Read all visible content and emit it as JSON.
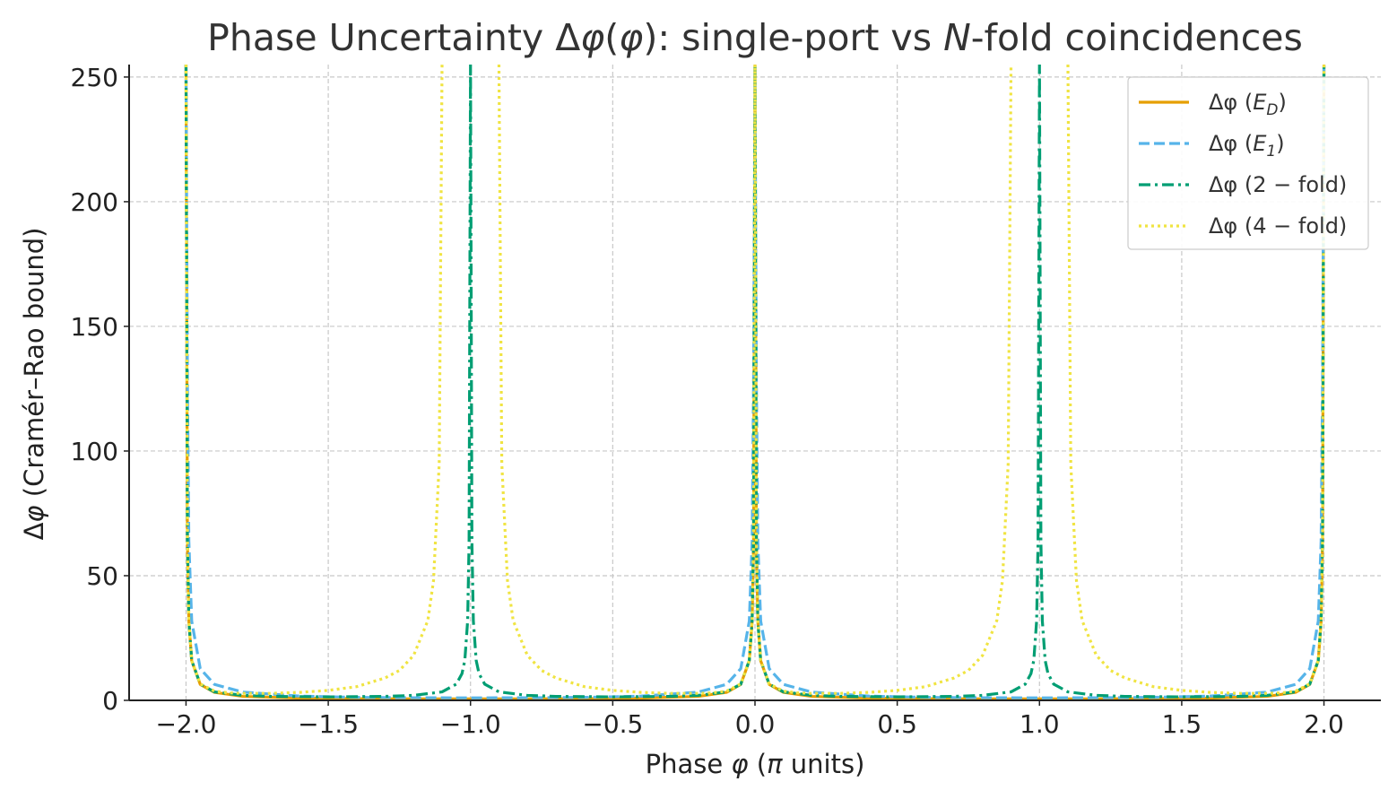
{
  "chart_data": {
    "type": "line",
    "title": "Phase Uncertainty Δφ(φ): single-port vs N-fold coincidences",
    "xlabel": "Phase φ (π units)",
    "ylabel": "Δφ (Cramér–Rao bound)",
    "xlim": [
      -2.2,
      2.2
    ],
    "ylim": [
      0,
      255
    ],
    "x_ticks": [
      -2.0,
      -1.5,
      -1.0,
      -0.5,
      0.0,
      0.5,
      1.0,
      1.5,
      2.0
    ],
    "x_tick_labels": [
      "−2.0",
      "−1.5",
      "−1.0",
      "−0.5",
      "0.0",
      "0.5",
      "1.0",
      "1.5",
      "2.0"
    ],
    "y_ticks": [
      0,
      50,
      100,
      150,
      200,
      250
    ],
    "y_tick_labels": [
      "0",
      "50",
      "100",
      "150",
      "200",
      "250"
    ],
    "grid": true,
    "legend_position": "top-right",
    "colors": {
      "ED": "#E69F00",
      "E1": "#56B4E9",
      "twofold": "#009E73",
      "fourfold": "#F0E442"
    },
    "series": [
      {
        "key": "ED",
        "name": "Δφ (E_D)",
        "style": "solid",
        "x": [
          -2.0,
          -1.995,
          -1.99,
          -1.98,
          -1.95,
          -1.9,
          -1.8,
          -1.6,
          -1.4,
          -1.2,
          -1.0,
          -0.8,
          -0.6,
          -0.4,
          -0.2,
          -0.1,
          -0.05,
          -0.02,
          -0.01,
          -0.005,
          0.0,
          0.005,
          0.01,
          0.02,
          0.05,
          0.1,
          0.2,
          0.4,
          0.6,
          0.8,
          1.0,
          1.2,
          1.4,
          1.6,
          1.8,
          1.9,
          1.95,
          1.98,
          1.99,
          1.995,
          2.0
        ],
        "y": [
          255,
          63.7,
          31.8,
          15.9,
          6.4,
          3.2,
          1.6,
          0.9,
          0.7,
          0.6,
          0.6,
          0.6,
          0.7,
          0.9,
          1.6,
          3.2,
          6.4,
          15.9,
          31.8,
          63.7,
          255,
          63.7,
          31.8,
          15.9,
          6.4,
          3.2,
          1.6,
          0.9,
          0.7,
          0.6,
          0.6,
          0.6,
          0.7,
          0.9,
          1.6,
          3.2,
          6.4,
          15.9,
          31.8,
          63.7,
          255
        ]
      },
      {
        "key": "E1",
        "name": "Δφ (E_1)",
        "style": "dashed",
        "x": [
          -2.0,
          -1.995,
          -1.99,
          -1.98,
          -1.95,
          -1.9,
          -1.8,
          -1.6,
          -1.4,
          -1.2,
          -1.0,
          -0.8,
          -0.6,
          -0.4,
          -0.2,
          -0.1,
          -0.05,
          -0.02,
          -0.01,
          -0.005,
          0.0,
          0.005,
          0.01,
          0.02,
          0.05,
          0.1,
          0.2,
          0.4,
          0.6,
          0.8,
          1.0,
          1.2,
          1.4,
          1.6,
          1.8,
          1.9,
          1.95,
          1.98,
          1.99,
          1.995,
          2.0
        ],
        "y": [
          255,
          127,
          63.7,
          31.8,
          12.7,
          6.4,
          3.3,
          1.7,
          1.2,
          1.05,
          1.0,
          1.05,
          1.2,
          1.7,
          3.3,
          6.4,
          12.7,
          31.8,
          63.7,
          127,
          255,
          127,
          63.7,
          31.8,
          12.7,
          6.4,
          3.3,
          1.7,
          1.2,
          1.05,
          1.0,
          1.05,
          1.2,
          1.7,
          3.3,
          6.4,
          12.7,
          31.8,
          63.7,
          127,
          255
        ]
      },
      {
        "key": "twofold",
        "name": "Δφ (2 − fold)",
        "style": "dashdot",
        "x": [
          -2.0,
          -1.995,
          -1.99,
          -1.98,
          -1.95,
          -1.9,
          -1.8,
          -1.7,
          -1.5,
          -1.3,
          -1.2,
          -1.1,
          -1.05,
          -1.03,
          -1.02,
          -1.01,
          -1.005,
          -1.0,
          -0.995,
          -0.99,
          -0.98,
          -0.97,
          -0.95,
          -0.9,
          -0.8,
          -0.7,
          -0.5,
          -0.3,
          -0.2,
          -0.1,
          -0.05,
          -0.02,
          -0.01,
          -0.005,
          0.0,
          0.005,
          0.01,
          0.02,
          0.05,
          0.1,
          0.2,
          0.3,
          0.5,
          0.7,
          0.8,
          0.9,
          0.95,
          0.97,
          0.98,
          0.99,
          0.995,
          1.0,
          1.005,
          1.01,
          1.02,
          1.03,
          1.05,
          1.1,
          1.2,
          1.3,
          1.5,
          1.7,
          1.8,
          1.9,
          1.95,
          1.98,
          1.99,
          1.995,
          2.0
        ],
        "y": [
          255,
          63.7,
          31.9,
          16.0,
          6.5,
          3.4,
          2.0,
          1.6,
          1.4,
          1.6,
          2.0,
          3.4,
          6.5,
          10.7,
          16.0,
          31.9,
          63.7,
          255,
          63.7,
          31.9,
          16.0,
          10.7,
          6.5,
          3.4,
          2.0,
          1.6,
          1.4,
          1.6,
          2.0,
          3.4,
          6.5,
          16.0,
          31.9,
          63.7,
          255,
          63.7,
          31.9,
          16.0,
          6.5,
          3.4,
          2.0,
          1.6,
          1.4,
          1.6,
          2.0,
          3.4,
          6.5,
          10.7,
          16.0,
          31.9,
          63.7,
          255,
          63.7,
          31.9,
          16.0,
          10.7,
          6.5,
          3.4,
          2.0,
          1.6,
          1.4,
          1.6,
          2.0,
          3.4,
          6.5,
          16.0,
          31.9,
          63.7,
          255
        ]
      },
      {
        "key": "fourfold",
        "name": "Δφ (4 − fold)",
        "style": "dotted",
        "x": [
          -2.0,
          -1.995,
          -1.99,
          -1.98,
          -1.95,
          -1.9,
          -1.85,
          -1.8,
          -1.7,
          -1.6,
          -1.5,
          -1.4,
          -1.3,
          -1.25,
          -1.2,
          -1.15,
          -1.13,
          -1.11,
          -1.1,
          -1.0,
          -0.9,
          -0.89,
          -0.87,
          -0.85,
          -0.8,
          -0.75,
          -0.7,
          -0.6,
          -0.5,
          -0.4,
          -0.3,
          -0.2,
          -0.15,
          -0.1,
          -0.05,
          -0.02,
          -0.01,
          -0.005,
          0.0,
          0.005,
          0.01,
          0.02,
          0.05,
          0.1,
          0.15,
          0.2,
          0.3,
          0.4,
          0.5,
          0.6,
          0.7,
          0.75,
          0.8,
          0.85,
          0.87,
          0.89,
          0.9,
          1.0,
          1.1,
          1.11,
          1.13,
          1.15,
          1.2,
          1.25,
          1.3,
          1.4,
          1.5,
          1.6,
          1.7,
          1.8,
          1.85,
          1.9,
          1.95,
          1.98,
          1.99,
          1.995,
          2.0
        ],
        "y": [
          255,
          63.7,
          31.9,
          16.0,
          6.6,
          3.7,
          3.0,
          2.8,
          2.8,
          3.2,
          4.0,
          5.5,
          9.0,
          12.0,
          18.0,
          32.0,
          48.0,
          95.0,
          255,
          null,
          255,
          95.0,
          48.0,
          32.0,
          18.0,
          12.0,
          9.0,
          5.5,
          4.0,
          3.2,
          2.8,
          2.8,
          3.0,
          3.7,
          6.6,
          16.0,
          31.9,
          63.7,
          255,
          63.7,
          31.9,
          16.0,
          6.6,
          3.7,
          3.0,
          2.8,
          2.8,
          3.2,
          4.0,
          5.5,
          9.0,
          12.0,
          18.0,
          32.0,
          48.0,
          95.0,
          255,
          null,
          255,
          95.0,
          48.0,
          32.0,
          18.0,
          12.0,
          9.0,
          5.5,
          4.0,
          3.2,
          2.8,
          2.8,
          3.0,
          3.7,
          6.6,
          16.0,
          31.9,
          63.7,
          255
        ]
      }
    ]
  }
}
